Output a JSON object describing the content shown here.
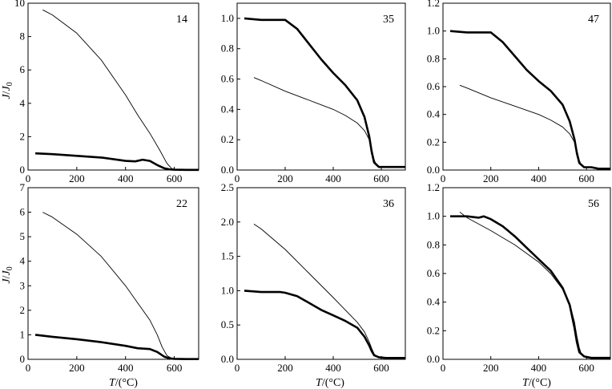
{
  "figure": {
    "ylabel_base": "J",
    "ylabel_sep": "/",
    "ylabel_sub_base": "J",
    "ylabel_sub": "0",
    "xlabel_var": "T",
    "xlabel_unit": "/(°C)"
  },
  "chart_data": [
    {
      "type": "line",
      "panel": "14",
      "xlim": [
        0,
        700
      ],
      "ylim": [
        0,
        10
      ],
      "xticks": [
        0,
        200,
        400,
        600
      ],
      "yticks": [
        0,
        2,
        4,
        6,
        8,
        10
      ],
      "xlabel": "",
      "ylabel": "J/J0",
      "series": [
        {
          "name": "thick",
          "x": [
            30,
            100,
            200,
            300,
            400,
            440,
            470,
            500,
            530,
            560,
            580,
            600,
            650,
            700
          ],
          "y": [
            1.0,
            0.95,
            0.85,
            0.75,
            0.55,
            0.52,
            0.62,
            0.55,
            0.3,
            0.1,
            0.04,
            0.02,
            0.01,
            0.01
          ]
        },
        {
          "name": "thin",
          "x": [
            60,
            100,
            200,
            300,
            400,
            450,
            500,
            540,
            570,
            590,
            610,
            650,
            700
          ],
          "y": [
            9.6,
            9.3,
            8.2,
            6.6,
            4.5,
            3.3,
            2.2,
            1.2,
            0.4,
            0.08,
            0.02,
            0.01,
            0.01
          ]
        }
      ]
    },
    {
      "type": "line",
      "panel": "35",
      "xlim": [
        0,
        700
      ],
      "ylim": [
        0,
        1.1
      ],
      "xticks": [
        0,
        200,
        400,
        600
      ],
      "yticks": [
        0.0,
        0.2,
        0.4,
        0.6,
        0.8,
        1.0
      ],
      "xlabel": "",
      "ylabel": "",
      "series": [
        {
          "name": "thick",
          "x": [
            30,
            100,
            180,
            200,
            250,
            300,
            350,
            400,
            450,
            500,
            530,
            550,
            560,
            570,
            590,
            620,
            650,
            700
          ],
          "y": [
            1.0,
            0.99,
            0.99,
            0.99,
            0.93,
            0.83,
            0.73,
            0.64,
            0.56,
            0.46,
            0.35,
            0.22,
            0.12,
            0.05,
            0.02,
            0.02,
            0.02,
            0.02
          ]
        },
        {
          "name": "thin",
          "x": [
            70,
            100,
            200,
            300,
            400,
            450,
            500,
            530,
            550,
            560,
            570,
            580,
            600
          ],
          "y": [
            0.61,
            0.59,
            0.52,
            0.46,
            0.4,
            0.36,
            0.31,
            0.26,
            0.2,
            0.14,
            0.07,
            0.03,
            0.02
          ]
        }
      ]
    },
    {
      "type": "line",
      "panel": "47",
      "xlim": [
        0,
        700
      ],
      "ylim": [
        0,
        1.2
      ],
      "xticks": [
        0,
        200,
        400,
        600
      ],
      "yticks": [
        0.0,
        0.2,
        0.4,
        0.6,
        0.8,
        1.0,
        1.2
      ],
      "xlabel": "",
      "ylabel": "",
      "series": [
        {
          "name": "thick",
          "x": [
            30,
            100,
            180,
            200,
            250,
            300,
            350,
            400,
            450,
            500,
            530,
            550,
            560,
            570,
            590,
            620,
            650,
            700
          ],
          "y": [
            1.0,
            0.99,
            0.99,
            0.99,
            0.92,
            0.82,
            0.72,
            0.64,
            0.57,
            0.47,
            0.35,
            0.22,
            0.12,
            0.05,
            0.02,
            0.02,
            0.01,
            0.01
          ]
        },
        {
          "name": "thin",
          "x": [
            70,
            100,
            200,
            300,
            400,
            450,
            500,
            530,
            550,
            560,
            570,
            580,
            600
          ],
          "y": [
            0.61,
            0.59,
            0.52,
            0.46,
            0.4,
            0.36,
            0.31,
            0.26,
            0.2,
            0.14,
            0.07,
            0.03,
            0.02
          ]
        }
      ]
    },
    {
      "type": "line",
      "panel": "22",
      "xlim": [
        0,
        700
      ],
      "ylim": [
        0,
        7
      ],
      "xticks": [
        0,
        200,
        400,
        600
      ],
      "yticks": [
        0,
        1,
        2,
        3,
        4,
        5,
        6,
        7
      ],
      "xlabel": "T/(°C)",
      "ylabel": "J/J0",
      "series": [
        {
          "name": "thick",
          "x": [
            30,
            100,
            200,
            300,
            400,
            450,
            500,
            530,
            560,
            580,
            600,
            650,
            700
          ],
          "y": [
            1.0,
            0.92,
            0.82,
            0.7,
            0.55,
            0.45,
            0.42,
            0.3,
            0.1,
            0.04,
            0.02,
            0.01,
            0.01
          ]
        },
        {
          "name": "thin",
          "x": [
            60,
            100,
            200,
            300,
            400,
            450,
            500,
            530,
            550,
            570,
            590,
            610,
            650,
            700
          ],
          "y": [
            6.0,
            5.8,
            5.1,
            4.2,
            3.0,
            2.3,
            1.6,
            1.0,
            0.5,
            0.15,
            0.04,
            0.02,
            0.01,
            0.01
          ]
        }
      ]
    },
    {
      "type": "line",
      "panel": "36",
      "xlim": [
        0,
        700
      ],
      "ylim": [
        0,
        2.5
      ],
      "xticks": [
        0,
        200,
        400,
        600
      ],
      "yticks": [
        0.0,
        0.5,
        1.0,
        1.5,
        2.0,
        2.5
      ],
      "xlabel": "T/(°C)",
      "ylabel": "",
      "series": [
        {
          "name": "thick",
          "x": [
            30,
            100,
            180,
            200,
            250,
            300,
            350,
            400,
            450,
            500,
            530,
            550,
            560,
            570,
            590,
            620,
            650,
            700
          ],
          "y": [
            1.0,
            0.98,
            0.98,
            0.97,
            0.92,
            0.82,
            0.72,
            0.64,
            0.56,
            0.46,
            0.33,
            0.2,
            0.12,
            0.06,
            0.03,
            0.02,
            0.02,
            0.02
          ]
        },
        {
          "name": "thin",
          "x": [
            70,
            100,
            200,
            300,
            400,
            450,
            500,
            530,
            550,
            560,
            570,
            580,
            600,
            650,
            700
          ],
          "y": [
            1.97,
            1.9,
            1.6,
            1.25,
            0.9,
            0.72,
            0.54,
            0.4,
            0.25,
            0.16,
            0.08,
            0.04,
            0.02,
            0.01,
            0.01
          ]
        }
      ]
    },
    {
      "type": "line",
      "panel": "56",
      "xlim": [
        0,
        700
      ],
      "ylim": [
        0,
        1.2
      ],
      "xticks": [
        0,
        200,
        400,
        600
      ],
      "yticks": [
        0.0,
        0.2,
        0.4,
        0.6,
        0.8,
        1.0,
        1.2
      ],
      "xlabel": "T/(°C)",
      "ylabel": "",
      "series": [
        {
          "name": "thick",
          "x": [
            30,
            100,
            150,
            170,
            200,
            250,
            300,
            350,
            400,
            450,
            500,
            530,
            550,
            560,
            570,
            590,
            620,
            650,
            700
          ],
          "y": [
            1.0,
            1.0,
            0.99,
            1.0,
            0.98,
            0.93,
            0.86,
            0.78,
            0.7,
            0.62,
            0.5,
            0.38,
            0.22,
            0.12,
            0.05,
            0.02,
            0.01,
            0.01,
            0.01
          ]
        },
        {
          "name": "thin",
          "x": [
            70,
            100,
            200,
            300,
            400,
            450,
            500,
            530,
            550,
            560,
            570,
            580,
            600,
            650,
            700
          ],
          "y": [
            1.03,
            0.99,
            0.9,
            0.8,
            0.68,
            0.6,
            0.49,
            0.39,
            0.26,
            0.16,
            0.08,
            0.03,
            0.01,
            0.01,
            0.01
          ]
        }
      ]
    }
  ]
}
